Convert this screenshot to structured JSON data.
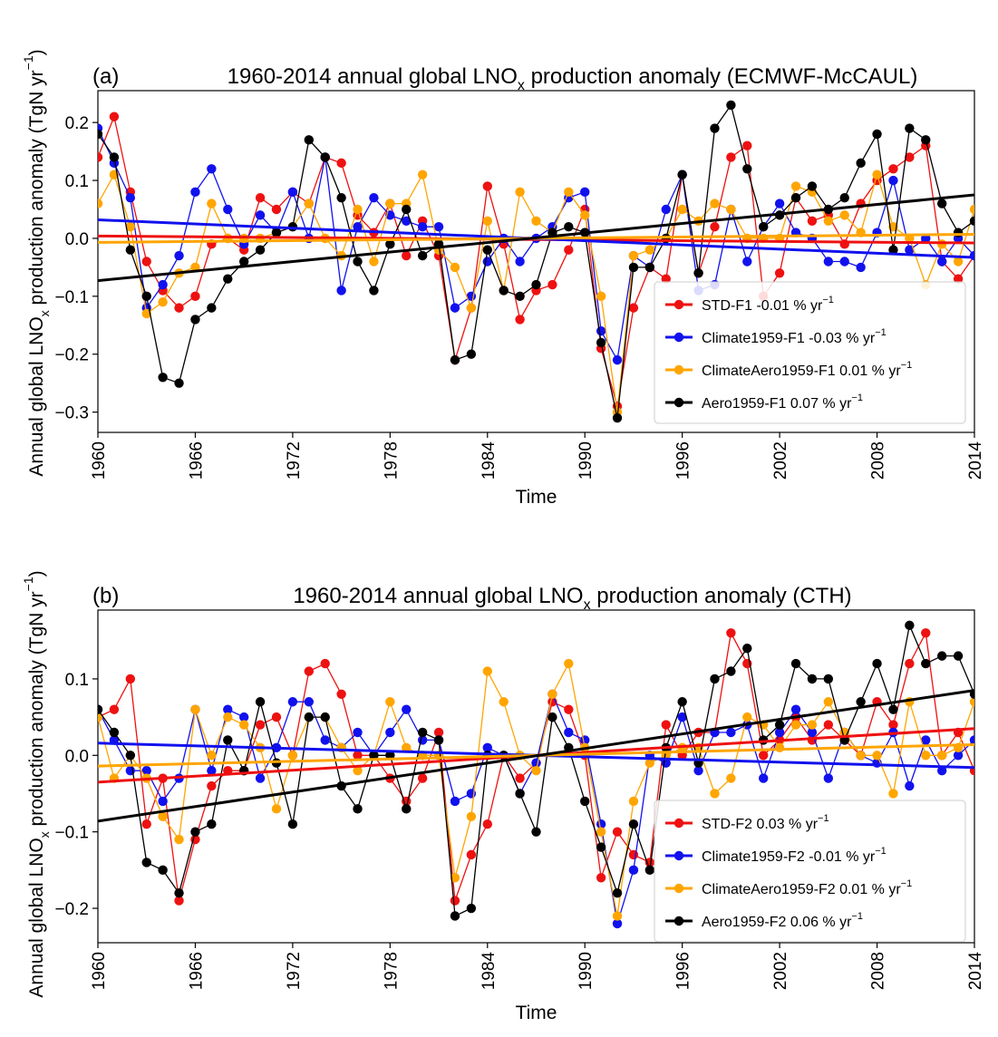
{
  "figure": {
    "ylabel_main": "Annual global LNO",
    "ylabel_sub": "x",
    "ylabel_tail": " production anomaly (TgN yr",
    "ylabel_sup": "−1",
    "ylabel_close": ")"
  },
  "colors": {
    "std": "#ee1111",
    "climate": "#1111ee",
    "aero_climate": "#ffa500",
    "aero": "#000000"
  },
  "chart_data": [
    {
      "type": "line",
      "panel_label": "(a)",
      "title_main": "1960-2014 annual global LNO",
      "title_sub": "x",
      "title_tail": " production anomaly (ECMWF-McCAUL)",
      "xlabel": "Time",
      "xlim": [
        1960,
        2014
      ],
      "ylim": [
        -0.335,
        0.255
      ],
      "xticks": [
        1960,
        1966,
        1972,
        1978,
        1984,
        1990,
        1996,
        2002,
        2008,
        2014
      ],
      "yticks": [
        0.2,
        0.1,
        0.0,
        -0.1,
        -0.2,
        -0.3
      ],
      "ytick_labels": [
        "0.2",
        "0.1",
        "0.0",
        "−0.1",
        "−0.2",
        "−0.3"
      ],
      "grid": false,
      "legend_position": "lower-right",
      "x": [
        1960,
        1961,
        1962,
        1963,
        1964,
        1965,
        1966,
        1967,
        1968,
        1969,
        1970,
        1971,
        1972,
        1973,
        1974,
        1975,
        1976,
        1977,
        1978,
        1979,
        1980,
        1981,
        1982,
        1983,
        1984,
        1985,
        1986,
        1987,
        1988,
        1989,
        1990,
        1991,
        1992,
        1993,
        1994,
        1995,
        1996,
        1997,
        1998,
        1999,
        2000,
        2001,
        2002,
        2003,
        2004,
        2005,
        2006,
        2007,
        2008,
        2009,
        2010,
        2011,
        2012,
        2013,
        2014
      ],
      "series": [
        {
          "key": "std",
          "legend": "STD-F1 -0.01 % yr",
          "legend_sup": "−1",
          "values": [
            0.14,
            0.21,
            0.08,
            -0.04,
            -0.09,
            -0.12,
            -0.1,
            -0.01,
            0.0,
            -0.02,
            0.07,
            0.05,
            0.08,
            0.06,
            0.14,
            0.13,
            0.04,
            0.01,
            0.06,
            -0.03,
            0.03,
            -0.03,
            -0.21,
            -0.12,
            0.09,
            -0.01,
            -0.14,
            -0.09,
            -0.08,
            -0.02,
            0.05,
            -0.19,
            -0.29,
            -0.12,
            -0.05,
            -0.07,
            0.11,
            -0.06,
            0.02,
            0.14,
            0.16,
            -0.1,
            -0.06,
            0.07,
            0.03,
            0.04,
            -0.01,
            0.06,
            0.1,
            0.12,
            0.14,
            0.16,
            -0.04,
            -0.07,
            -0.03
          ],
          "trend": [
            0.004,
            -0.008
          ]
        },
        {
          "key": "climate",
          "legend": "Climate1959-F1 -0.03 % yr",
          "legend_sup": "−1",
          "values": [
            0.19,
            0.13,
            0.07,
            -0.12,
            -0.08,
            -0.03,
            0.08,
            0.12,
            0.05,
            -0.01,
            0.04,
            0.01,
            0.08,
            0.0,
            0.14,
            -0.09,
            0.02,
            0.07,
            0.04,
            0.03,
            0.02,
            0.02,
            -0.12,
            -0.1,
            -0.04,
            0.0,
            -0.04,
            0.0,
            0.02,
            0.07,
            0.08,
            -0.16,
            -0.21,
            -0.03,
            -0.05,
            0.05,
            0.11,
            -0.09,
            -0.08,
            0.05,
            -0.04,
            0.02,
            0.06,
            0.01,
            0.0,
            -0.04,
            -0.04,
            -0.05,
            0.01,
            0.1,
            -0.02,
            0.0,
            -0.04,
            0.0,
            -0.03
          ],
          "trend": [
            0.032,
            -0.033
          ]
        },
        {
          "key": "aero_climate",
          "legend": "ClimateAero1959-F1 0.01 % yr",
          "legend_sup": "−1",
          "values": [
            0.06,
            0.11,
            0.02,
            -0.13,
            -0.11,
            -0.06,
            -0.05,
            0.06,
            0.0,
            0.0,
            0.0,
            0.01,
            0.02,
            0.06,
            0.0,
            -0.03,
            0.05,
            -0.04,
            0.06,
            0.06,
            0.11,
            -0.02,
            -0.05,
            -0.12,
            0.03,
            -0.09,
            0.08,
            0.03,
            0.01,
            0.08,
            0.04,
            -0.1,
            -0.3,
            -0.03,
            -0.02,
            0.0,
            0.05,
            0.03,
            0.06,
            0.05,
            0.0,
            0.0,
            0.0,
            0.09,
            0.08,
            0.03,
            0.04,
            0.01,
            0.11,
            0.02,
            0.0,
            -0.08,
            -0.01,
            -0.04,
            0.05
          ],
          "trend": [
            -0.007,
            0.007
          ]
        },
        {
          "key": "aero",
          "legend": "Aero1959-F1 0.07 % yr",
          "legend_sup": "−1",
          "values": [
            0.18,
            0.14,
            -0.02,
            -0.1,
            -0.24,
            -0.25,
            -0.14,
            -0.12,
            -0.07,
            -0.04,
            -0.02,
            0.01,
            0.02,
            0.17,
            0.14,
            0.07,
            -0.04,
            -0.09,
            -0.01,
            0.05,
            -0.03,
            -0.01,
            -0.21,
            -0.2,
            -0.02,
            -0.09,
            -0.1,
            -0.08,
            0.01,
            0.02,
            0.01,
            -0.18,
            -0.31,
            -0.05,
            -0.05,
            0.0,
            0.11,
            -0.06,
            0.19,
            0.23,
            0.12,
            0.02,
            0.04,
            0.07,
            0.09,
            0.05,
            0.07,
            0.13,
            0.18,
            -0.02,
            0.19,
            0.17,
            0.06,
            0.01,
            0.03
          ],
          "trend": [
            -0.073,
            0.075
          ]
        }
      ]
    },
    {
      "type": "line",
      "panel_label": "(b)",
      "title_main": "1960-2014 annual global LNO",
      "title_sub": "x",
      "title_tail": " production anomaly (CTH)",
      "xlabel": "Time",
      "xlim": [
        1960,
        2014
      ],
      "ylim": [
        -0.245,
        0.19
      ],
      "xticks": [
        1960,
        1966,
        1972,
        1978,
        1984,
        1990,
        1996,
        2002,
        2008,
        2014
      ],
      "yticks": [
        0.1,
        0.0,
        -0.1,
        -0.2
      ],
      "ytick_labels": [
        "0.1",
        "0.0",
        "−0.1",
        "−0.2"
      ],
      "grid": false,
      "legend_position": "lower-right",
      "x": [
        1960,
        1961,
        1962,
        1963,
        1964,
        1965,
        1966,
        1967,
        1968,
        1969,
        1970,
        1971,
        1972,
        1973,
        1974,
        1975,
        1976,
        1977,
        1978,
        1979,
        1980,
        1981,
        1982,
        1983,
        1984,
        1985,
        1986,
        1987,
        1988,
        1989,
        1990,
        1991,
        1992,
        1993,
        1994,
        1995,
        1996,
        1997,
        1998,
        1999,
        2000,
        2001,
        2002,
        2003,
        2004,
        2005,
        2006,
        2007,
        2008,
        2009,
        2010,
        2011,
        2012,
        2013,
        2014
      ],
      "series": [
        {
          "key": "std",
          "legend": "STD-F2 0.03 % yr",
          "legend_sup": "−1",
          "values": [
            0.05,
            0.06,
            0.1,
            -0.09,
            -0.03,
            -0.19,
            -0.11,
            -0.04,
            -0.02,
            -0.02,
            0.04,
            0.05,
            0.0,
            0.11,
            0.12,
            0.08,
            0.0,
            0.0,
            -0.03,
            -0.06,
            -0.03,
            0.03,
            -0.19,
            -0.13,
            -0.09,
            0.0,
            -0.03,
            -0.01,
            0.07,
            0.06,
            0.0,
            -0.16,
            -0.1,
            -0.13,
            -0.14,
            0.04,
            0.0,
            0.03,
            0.03,
            0.16,
            0.12,
            0.0,
            0.02,
            0.05,
            0.02,
            0.04,
            0.02,
            0.0,
            0.07,
            0.04,
            0.12,
            0.16,
            0.0,
            0.03,
            -0.02
          ],
          "trend": [
            -0.035,
            0.035
          ]
        },
        {
          "key": "climate",
          "legend": "Climate1959-F2 -0.01 % yr",
          "legend_sup": "−1",
          "values": [
            0.06,
            0.02,
            -0.02,
            -0.02,
            -0.06,
            -0.03,
            0.06,
            -0.02,
            0.06,
            0.05,
            -0.03,
            0.01,
            0.07,
            0.07,
            0.02,
            0.01,
            0.03,
            0.0,
            0.03,
            0.06,
            0.02,
            0.02,
            -0.06,
            -0.05,
            0.01,
            0.0,
            -0.05,
            -0.01,
            0.08,
            0.03,
            0.02,
            -0.09,
            -0.22,
            -0.15,
            0.0,
            -0.01,
            0.05,
            -0.02,
            0.03,
            0.03,
            0.04,
            -0.03,
            0.03,
            0.06,
            0.03,
            -0.03,
            0.03,
            0.0,
            -0.01,
            0.03,
            -0.04,
            0.02,
            -0.02,
            0.0,
            0.02
          ],
          "trend": [
            0.016,
            -0.016
          ]
        },
        {
          "key": "aero_climate",
          "legend": "ClimateAero1959-F2 0.01 % yr",
          "legend_sup": "−1",
          "values": [
            0.05,
            -0.03,
            0.0,
            -0.03,
            -0.08,
            -0.11,
            0.06,
            0.0,
            0.05,
            0.04,
            0.01,
            -0.07,
            0.0,
            0.05,
            0.05,
            0.01,
            -0.02,
            0.0,
            0.07,
            0.01,
            0.0,
            0.0,
            -0.16,
            -0.08,
            0.11,
            0.07,
            0.0,
            -0.02,
            0.08,
            0.12,
            0.01,
            -0.1,
            -0.21,
            -0.06,
            -0.01,
            0.0,
            0.01,
            0.01,
            -0.05,
            -0.03,
            0.05,
            0.04,
            0.01,
            0.04,
            0.04,
            0.07,
            0.03,
            0.0,
            0.0,
            -0.05,
            0.07,
            0.0,
            0.0,
            0.01,
            0.07
          ],
          "trend": [
            -0.014,
            0.014
          ]
        },
        {
          "key": "aero",
          "legend": "Aero1959-F2 0.06 % yr",
          "legend_sup": "−1",
          "values": [
            0.06,
            0.03,
            0.0,
            -0.14,
            -0.15,
            -0.18,
            -0.1,
            -0.09,
            0.02,
            -0.02,
            0.07,
            -0.01,
            -0.09,
            0.05,
            0.05,
            -0.04,
            -0.07,
            0.0,
            0.0,
            -0.07,
            0.03,
            0.02,
            -0.21,
            -0.2,
            0.0,
            0.0,
            -0.05,
            -0.1,
            0.05,
            0.01,
            -0.06,
            -0.12,
            -0.18,
            -0.09,
            -0.15,
            0.01,
            0.07,
            -0.01,
            0.1,
            0.11,
            0.14,
            0.02,
            0.04,
            0.12,
            0.1,
            0.1,
            0.02,
            0.07,
            0.12,
            0.06,
            0.17,
            0.12,
            0.13,
            0.13,
            0.08
          ],
          "trend": [
            -0.086,
            0.085
          ]
        }
      ]
    }
  ]
}
